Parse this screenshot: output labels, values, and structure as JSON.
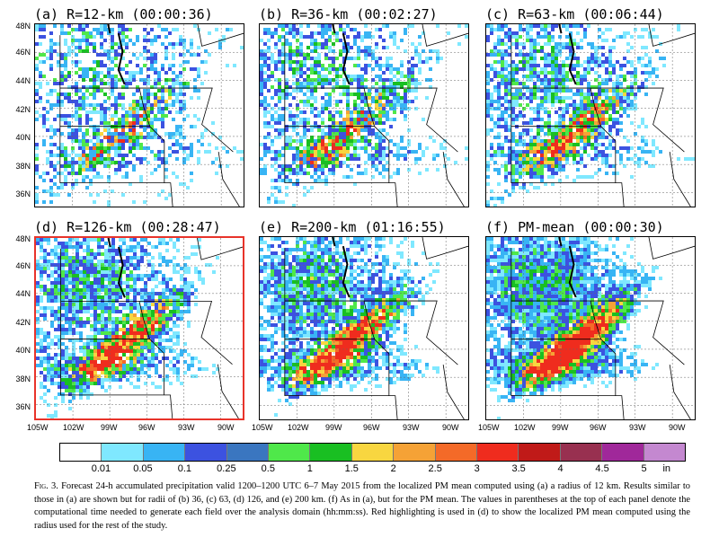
{
  "panels": [
    {
      "title": "(a) R=12-km (00:00:36)",
      "highlight": false,
      "intensity": 0.55
    },
    {
      "title": "(b) R=36-km (00:02:27)",
      "highlight": false,
      "intensity": 0.65
    },
    {
      "title": "(c) R=63-km (00:06:44)",
      "highlight": false,
      "intensity": 0.72
    },
    {
      "title": "(d) R=126-km (00:28:47)",
      "highlight": true,
      "intensity": 0.82
    },
    {
      "title": "(e) R=200-km (01:16:55)",
      "highlight": false,
      "intensity": 0.86
    },
    {
      "title": "(f) PM-mean (00:00:30)",
      "highlight": false,
      "intensity": 0.95
    }
  ],
  "lat_labels": [
    "48N",
    "46N",
    "44N",
    "42N",
    "40N",
    "38N",
    "36N"
  ],
  "lon_labels": [
    "105W",
    "102W",
    "99W",
    "96W",
    "93W",
    "90W"
  ],
  "colorbar": {
    "labels": [
      "0.01",
      "0.05",
      "0.1",
      "0.25",
      "0.5",
      "1",
      "1.5",
      "2",
      "2.5",
      "3",
      "3.5",
      "4",
      "4.5",
      "5",
      "in"
    ],
    "colors": [
      "#ffffff",
      "#7fe8ff",
      "#38b4f4",
      "#3c52e0",
      "#3a76c0",
      "#4fe84a",
      "#19bf22",
      "#f8d640",
      "#f5a236",
      "#f46a28",
      "#ef2c1e",
      "#c01a18",
      "#983050",
      "#a0289a",
      "#c488d0"
    ]
  },
  "caption": {
    "fig": "Fig. 3.",
    "text": " Forecast 24-h accumulated precipitation valid 1200–1200 UTC 6–7 May 2015 from the localized PM mean computed using (a) a radius of 12 km. Results similar to those in (a) are shown but for radii of (b) 36, (c) 63, (d) 126, and (e) 200 km. (f) As in (a), but for the PM mean. The values in parentheses at the top of each panel denote the computational time needed to generate each field over the analysis domain (hh:mm:ss). Red highlighting is used in (d) to show the localized PM mean computed using the radius used for the rest of the study."
  }
}
